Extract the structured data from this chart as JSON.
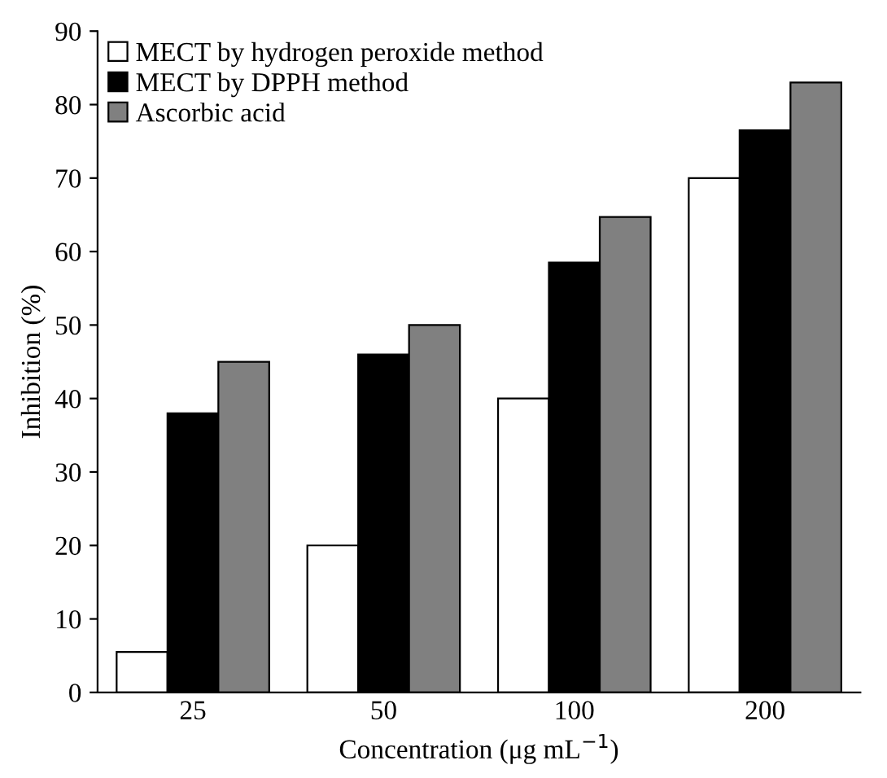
{
  "chart_data": {
    "type": "bar",
    "ylabel": "Inhibition (%)",
    "xlabel": "Concentration (μg mL$^{−1}$)",
    "categories": [
      "25",
      "50",
      "100",
      "200"
    ],
    "series": [
      {
        "name": "MECT by hydrogen peroxide method",
        "color": "#ffffff",
        "values": [
          5.5,
          20,
          40,
          70
        ]
      },
      {
        "name": "MECT by DPPH method",
        "color": "#000000",
        "values": [
          38,
          46,
          58.5,
          76.5
        ]
      },
      {
        "name": "Ascorbic acid",
        "color": "#808080",
        "values": [
          45,
          50,
          64.7,
          83
        ]
      }
    ],
    "ylim": [
      0,
      90
    ],
    "yticks": [
      0,
      10,
      20,
      30,
      40,
      50,
      60,
      70,
      80,
      90
    ],
    "grid": false,
    "legend": "top left"
  }
}
